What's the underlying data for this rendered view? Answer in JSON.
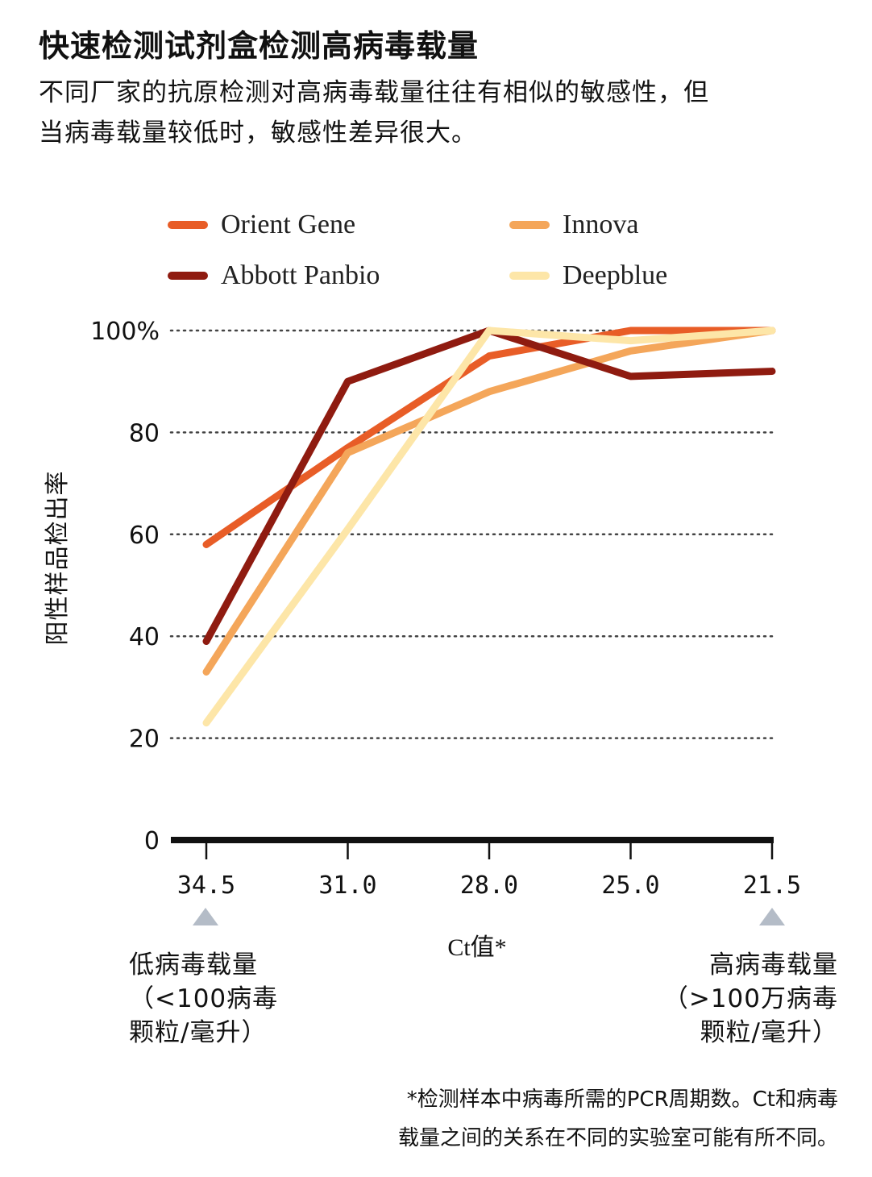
{
  "title": "快速检测试剂盒检测高病毒载量",
  "subtitle": "不同厂家的抗原检测对高病毒载量往往有相似的敏感性，但当病毒载量较低时，敏感性差异很大。",
  "annotations": {
    "left_lines": [
      "低病毒载量",
      "（<100病毒",
      "颗粒/毫升）"
    ],
    "right_lines": [
      "高病毒载量",
      "（>100万病毒",
      "颗粒/毫升）"
    ]
  },
  "footnote_lines": [
    "*检测样本中病毒所需的PCR周期数。Ct和病毒",
    "载量之间的关系在不同的实验室可能有所不同。"
  ],
  "colors": {
    "orient_gene": "#e85d27",
    "innova": "#f4a65a",
    "abbott_panbio": "#8f1b10",
    "deepblue": "#fde6a8",
    "grid": "#444444",
    "axis": "#111111",
    "arrow": "#b4bcc7"
  },
  "chart_data": {
    "type": "line",
    "title": "快速检测试剂盒检测高病毒载量",
    "xlabel": "Ct值*",
    "ylabel": "阳性样品检出率",
    "categories": [
      "34.5",
      "31.0",
      "28.0",
      "25.0",
      "21.5"
    ],
    "y_ticks": [
      "0",
      "20",
      "40",
      "60",
      "80",
      "100%"
    ],
    "y_tick_values": [
      0,
      20,
      40,
      60,
      80,
      100
    ],
    "ylim": [
      0,
      100
    ],
    "grid": "horizontal dotted",
    "legend_position": "top",
    "series": [
      {
        "name": "Orient Gene",
        "color": "#e85d27",
        "values": [
          58,
          77,
          95,
          100,
          100
        ]
      },
      {
        "name": "Innova",
        "color": "#f4a65a",
        "values": [
          33,
          76,
          88,
          96,
          100
        ]
      },
      {
        "name": "Abbott Panbio",
        "color": "#8f1b10",
        "values": [
          39,
          90,
          100,
          91,
          92
        ]
      },
      {
        "name": "Deepblue",
        "color": "#fde6a8",
        "values": [
          23,
          61,
          100,
          98,
          100
        ]
      }
    ]
  }
}
